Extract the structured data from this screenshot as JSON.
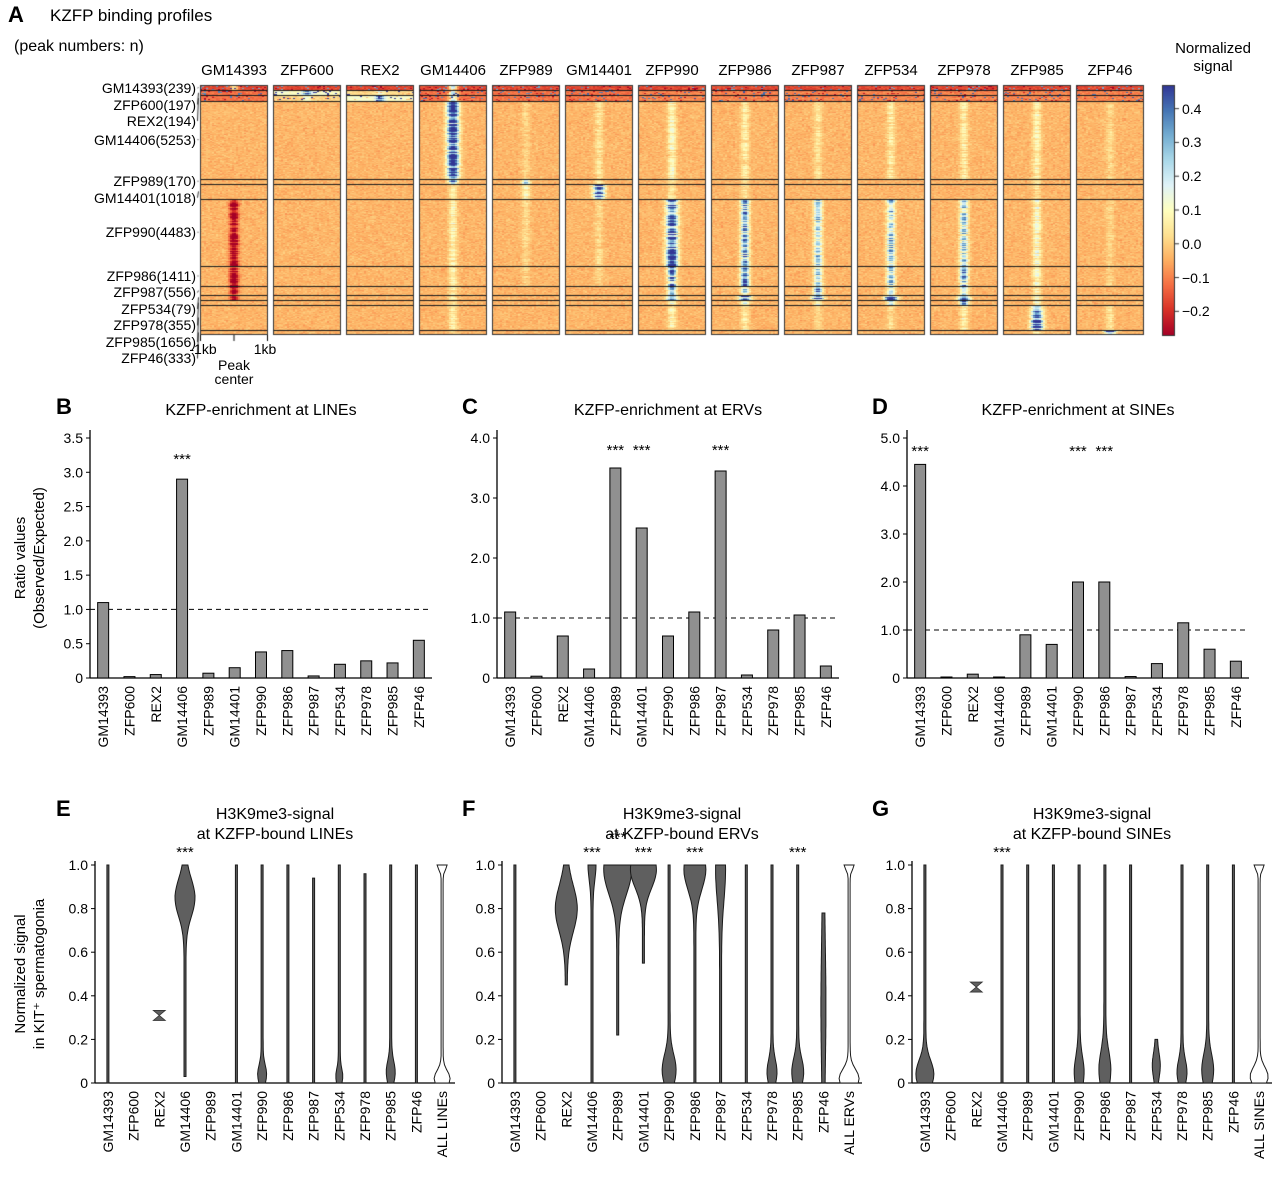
{
  "shared": {
    "ylabel_bcd_line1": "Ratio values",
    "ylabel_bcd_line2": "(Observed/Expected)",
    "ylabel_efg_line1": "Normalized signal",
    "ylabel_efg_line2": "in KIT⁺ spermatogonia"
  },
  "chart_data": [
    {
      "id": "A",
      "type": "heatmap",
      "label": "A",
      "title": "KZFP binding profiles",
      "subtitle": "(peak numbers: n)",
      "columns": [
        "GM14393",
        "ZFP600",
        "REX2",
        "GM14406",
        "ZFP989",
        "GM14401",
        "ZFP990",
        "ZFP986",
        "ZFP987",
        "ZFP534",
        "ZFP978",
        "ZFP985",
        "ZFP46"
      ],
      "rows": [
        {
          "name": "GM14393",
          "n": 239
        },
        {
          "name": "ZFP600",
          "n": 197
        },
        {
          "name": "REX2",
          "n": 194
        },
        {
          "name": "GM14406",
          "n": 5253
        },
        {
          "name": "ZFP989",
          "n": 170
        },
        {
          "name": "GM14401",
          "n": 1018
        },
        {
          "name": "ZFP990",
          "n": 4483
        },
        {
          "name": "ZFP986",
          "n": 1411
        },
        {
          "name": "ZFP987",
          "n": 556
        },
        {
          "name": "ZFP534",
          "n": 79
        },
        {
          "name": "ZFP978",
          "n": 355
        },
        {
          "name": "ZFP985",
          "n": 1656
        },
        {
          "name": "ZFP46",
          "n": 333
        }
      ],
      "xaxis": {
        "left": "-1kb",
        "right": "1kb",
        "center_line1": "Peak",
        "center_line2": "center"
      },
      "colorbar": {
        "title_line1": "Normalized",
        "title_line2": "signal",
        "ticks": [
          0.4,
          0.3,
          0.2,
          0.1,
          0.0,
          -0.1,
          -0.2
        ],
        "tick_labels": [
          "0.4",
          "0.3",
          "0.2",
          "0.1",
          "0.0",
          "−0.1",
          "−0.2"
        ],
        "vmin": -0.27,
        "vmax": 0.47,
        "palette": [
          "#a50026",
          "#d73027",
          "#f46d43",
          "#fdae61",
          "#fee090",
          "#ffffbf",
          "#e0f3f8",
          "#abd9e9",
          "#74add1",
          "#4575b4",
          "#313695"
        ]
      },
      "center_signal": [
        [
          0.2,
          0,
          0,
          0.3,
          0,
          0,
          0,
          0,
          0,
          0,
          0,
          0,
          0
        ],
        [
          0,
          0.3,
          0.15,
          0.3,
          0,
          0,
          0,
          0,
          0,
          0,
          0,
          0,
          0
        ],
        [
          0,
          0.15,
          0.3,
          0.3,
          0,
          0,
          0,
          0,
          0,
          0,
          0,
          0,
          0
        ],
        [
          0,
          0,
          0,
          0.55,
          0.05,
          0.08,
          0.13,
          0.1,
          0.08,
          0.1,
          0.1,
          0.12,
          0.06
        ],
        [
          0,
          0,
          0,
          0.45,
          0.4,
          0.1,
          0.08,
          0.08,
          0,
          0,
          0,
          0.08,
          0
        ],
        [
          0,
          0,
          0,
          0.1,
          0.12,
          0.5,
          0.1,
          0.08,
          0,
          0,
          0,
          0.08,
          0
        ],
        [
          -0.32,
          0,
          0,
          0.12,
          0.06,
          0.06,
          0.5,
          0.38,
          0.3,
          0.32,
          0.3,
          0.16,
          0.05
        ],
        [
          -0.32,
          0,
          0,
          0.12,
          0.05,
          0.05,
          0.45,
          0.45,
          0.3,
          0.32,
          0.35,
          0.16,
          0.05
        ],
        [
          -0.28,
          0,
          0,
          0.1,
          0,
          0,
          0.35,
          0.3,
          0.42,
          0.28,
          0.25,
          0.12,
          0
        ],
        [
          -0.2,
          0,
          0,
          0.1,
          0,
          0,
          0.5,
          0.5,
          0.6,
          0.65,
          0.5,
          0.2,
          0
        ],
        [
          0,
          0,
          0,
          0.08,
          0,
          0,
          0.2,
          0.2,
          0.15,
          0.22,
          0.42,
          0.15,
          0
        ],
        [
          0,
          0,
          0,
          0.1,
          0,
          0,
          0.12,
          0.1,
          0.05,
          0.08,
          0.12,
          0.55,
          0.08
        ],
        [
          0,
          0,
          0,
          0.05,
          0,
          0,
          0,
          0,
          0,
          0,
          0,
          0.1,
          0.55
        ]
      ],
      "band_signal": {
        "0": [
          -0.13,
          -0.13,
          -0.13,
          -0.13,
          -0.13,
          -0.13,
          -0.13,
          -0.13,
          -0.13,
          -0.13,
          -0.13,
          -0.13,
          -0.13
        ],
        "1": [
          -0.08,
          0.15,
          0.05,
          -0.08,
          -0.08,
          -0.08,
          -0.06,
          -0.06,
          -0.06,
          -0.06,
          -0.06,
          -0.06,
          -0.06
        ],
        "2": [
          -0.08,
          0.05,
          0.15,
          -0.08,
          -0.08,
          -0.08,
          -0.06,
          -0.06,
          -0.06,
          -0.06,
          -0.06,
          -0.06,
          -0.06
        ]
      }
    },
    {
      "id": "B",
      "type": "bar",
      "label": "B",
      "title": "KZFP-enrichment at LINEs",
      "categories": [
        "GM14393",
        "ZFP600",
        "REX2",
        "GM14406",
        "ZFP989",
        "GM14401",
        "ZFP990",
        "ZFP986",
        "ZFP987",
        "ZFP534",
        "ZFP978",
        "ZFP985",
        "ZFP46"
      ],
      "values": [
        1.1,
        0.02,
        0.05,
        2.9,
        0.07,
        0.15,
        0.38,
        0.4,
        0.03,
        0.2,
        0.25,
        0.22,
        0.55
      ],
      "ylim": [
        0,
        3.5
      ],
      "yticks": [
        "0",
        "0.5",
        "1.0",
        "1.5",
        "2.0",
        "2.5",
        "3.0",
        "3.5"
      ],
      "baseline": 1.0,
      "stars": [
        "GM14406"
      ],
      "star_y": 3.12
    },
    {
      "id": "C",
      "type": "bar",
      "label": "C",
      "title": "KZFP-enrichment at ERVs",
      "categories": [
        "GM14393",
        "ZFP600",
        "REX2",
        "GM14406",
        "ZFP989",
        "GM14401",
        "ZFP990",
        "ZFP986",
        "ZFP987",
        "ZFP534",
        "ZFP978",
        "ZFP985",
        "ZFP46"
      ],
      "values": [
        1.1,
        0.03,
        0.7,
        0.15,
        3.5,
        2.5,
        0.7,
        1.1,
        3.45,
        0.05,
        0.8,
        1.05,
        0.2
      ],
      "ylim": [
        0,
        4.0
      ],
      "yticks": [
        "0",
        "1.0",
        "2.0",
        "3.0",
        "4.0"
      ],
      "baseline": 1.0,
      "stars": [
        "ZFP989",
        "GM14401",
        "ZFP987"
      ],
      "star_y": 3.72
    },
    {
      "id": "D",
      "type": "bar",
      "label": "D",
      "title": "KZFP-enrichment at SINEs",
      "categories": [
        "GM14393",
        "ZFP600",
        "REX2",
        "GM14406",
        "ZFP989",
        "GM14401",
        "ZFP990",
        "ZFP986",
        "ZFP987",
        "ZFP534",
        "ZFP978",
        "ZFP985",
        "ZFP46"
      ],
      "values": [
        4.45,
        0.02,
        0.08,
        0.02,
        0.9,
        0.7,
        2.0,
        2.0,
        0.03,
        0.3,
        1.15,
        0.6,
        0.35
      ],
      "ylim": [
        0,
        5.0
      ],
      "yticks": [
        "0",
        "1.0",
        "2.0",
        "3.0",
        "4.0",
        "5.0"
      ],
      "baseline": 1.0,
      "stars": [
        "GM14393",
        "ZFP990",
        "ZFP986"
      ],
      "star_y": 4.62
    },
    {
      "id": "E",
      "type": "violin",
      "label": "E",
      "title_line1": "H3K9me3-signal",
      "title_line2": "at KZFP-bound LINEs",
      "ylim": [
        0,
        1
      ],
      "yticks": [
        "0",
        "0.2",
        "0.4",
        "0.6",
        "0.8",
        "1.0"
      ],
      "categories": [
        "GM14393",
        "ZFP600",
        "REX2",
        "GM14406",
        "ZFP989",
        "GM14401",
        "ZFP990",
        "ZFP986",
        "ZFP987",
        "ZFP534",
        "ZFP978",
        "ZFP985",
        "ZFP46",
        "ALL LINEs"
      ],
      "violins": [
        {
          "cat": "GM14393",
          "kind": "violin",
          "lo": 0,
          "hi": 1,
          "bulges": []
        },
        {
          "cat": "ZFP600",
          "kind": "none"
        },
        {
          "cat": "REX2",
          "kind": "bowtie",
          "y": 0.31
        },
        {
          "cat": "GM14406",
          "kind": "violin",
          "lo": 0.03,
          "hi": 1,
          "bulges": [
            {
              "y": 0.85,
              "w": 9,
              "h": 0.12
            }
          ]
        },
        {
          "cat": "ZFP989",
          "kind": "none"
        },
        {
          "cat": "GM14401",
          "kind": "violin",
          "lo": 0,
          "hi": 1,
          "bulges": []
        },
        {
          "cat": "ZFP990",
          "kind": "violin",
          "lo": 0,
          "hi": 1,
          "bulges": [
            {
              "y": 0.04,
              "w": 3.5,
              "h": 0.06
            }
          ]
        },
        {
          "cat": "ZFP986",
          "kind": "violin",
          "lo": 0,
          "hi": 1,
          "bulges": []
        },
        {
          "cat": "ZFP987",
          "kind": "violin",
          "lo": 0,
          "hi": 0.94,
          "bulges": []
        },
        {
          "cat": "ZFP534",
          "kind": "violin",
          "lo": 0,
          "hi": 1,
          "bulges": [
            {
              "y": 0.03,
              "w": 2.5,
              "h": 0.05
            }
          ]
        },
        {
          "cat": "ZFP978",
          "kind": "violin",
          "lo": 0,
          "hi": 0.96,
          "bulges": []
        },
        {
          "cat": "ZFP985",
          "kind": "violin",
          "lo": 0,
          "hi": 1,
          "bulges": [
            {
              "y": 0.05,
              "w": 3.5,
              "h": 0.07
            }
          ]
        },
        {
          "cat": "ZFP46",
          "kind": "violin",
          "lo": 0,
          "hi": 1,
          "bulges": []
        },
        {
          "cat": "ALL LINEs",
          "kind": "violin",
          "open": true,
          "lo": 0,
          "hi": 1,
          "bulges": [
            {
              "y": 0.02,
              "w": 7,
              "h": 0.05
            },
            {
              "y": 1,
              "w": 4,
              "h": 0.03
            }
          ]
        }
      ],
      "stars": [
        {
          "cat": "GM14406",
          "row": 0
        }
      ]
    },
    {
      "id": "F",
      "type": "violin",
      "label": "F",
      "title_line1": "H3K9me3-signal",
      "title_line2": "at KZFP-bound ERVs",
      "ylim": [
        0,
        1
      ],
      "yticks": [
        "0",
        "0.2",
        "0.4",
        "0.6",
        "0.8",
        "1.0"
      ],
      "categories": [
        "GM14393",
        "ZFP600",
        "REX2",
        "GM14406",
        "ZFP989",
        "GM14401",
        "ZFP990",
        "ZFP986",
        "ZFP987",
        "ZFP534",
        "ZFP978",
        "ZFP985",
        "ZFP46",
        "ALL ERVs"
      ],
      "violins": [
        {
          "cat": "GM14393",
          "kind": "violin",
          "lo": 0,
          "hi": 1,
          "bulges": []
        },
        {
          "cat": "ZFP600",
          "kind": "none"
        },
        {
          "cat": "REX2",
          "kind": "violin",
          "lo": 0.45,
          "hi": 1,
          "bulges": [
            {
              "y": 0.8,
              "w": 10,
              "h": 0.15
            }
          ]
        },
        {
          "cat": "GM14406",
          "kind": "violin",
          "lo": 0,
          "hi": 1,
          "bulges": [
            {
              "y": 1,
              "w": 3,
              "h": 0.1
            }
          ]
        },
        {
          "cat": "ZFP989",
          "kind": "violin",
          "lo": 0.22,
          "hi": 1,
          "bulges": [
            {
              "y": 0.98,
              "w": 13,
              "h": 0.16
            }
          ]
        },
        {
          "cat": "GM14401",
          "kind": "violin",
          "lo": 0.55,
          "hi": 1,
          "bulges": [
            {
              "y": 0.98,
              "w": 12,
              "h": 0.12
            }
          ]
        },
        {
          "cat": "ZFP990",
          "kind": "violin",
          "lo": 0,
          "hi": 1,
          "bulges": [
            {
              "y": 0.06,
              "w": 6,
              "h": 0.1
            }
          ]
        },
        {
          "cat": "ZFP986",
          "kind": "violin",
          "lo": 0,
          "hi": 1,
          "bulges": [
            {
              "y": 0.98,
              "w": 10,
              "h": 0.13
            }
          ]
        },
        {
          "cat": "ZFP987",
          "kind": "violin",
          "lo": 0,
          "hi": 1,
          "bulges": [
            {
              "y": 0.98,
              "w": 4,
              "h": 0.2
            }
          ]
        },
        {
          "cat": "ZFP534",
          "kind": "violin",
          "lo": 0,
          "hi": 1,
          "bulges": []
        },
        {
          "cat": "ZFP978",
          "kind": "violin",
          "lo": 0,
          "hi": 1,
          "bulges": [
            {
              "y": 0.05,
              "w": 4,
              "h": 0.08
            }
          ]
        },
        {
          "cat": "ZFP985",
          "kind": "violin",
          "lo": 0,
          "hi": 1,
          "bulges": [
            {
              "y": 0.05,
              "w": 5,
              "h": 0.09
            }
          ]
        },
        {
          "cat": "ZFP46",
          "kind": "violin",
          "lo": 0,
          "hi": 0.78,
          "bulges": [
            {
              "y": 0.35,
              "w": 1.5,
              "h": 0.4
            }
          ]
        },
        {
          "cat": "ALL ERVs",
          "kind": "violin",
          "open": true,
          "lo": 0,
          "hi": 1,
          "bulges": [
            {
              "y": 0.02,
              "w": 9,
              "h": 0.06
            },
            {
              "y": 1,
              "w": 4,
              "h": 0.03
            }
          ]
        }
      ],
      "stars": [
        {
          "cat": "GM14406",
          "row": 0
        },
        {
          "cat": "ZFP989",
          "row": 1
        },
        {
          "cat": "GM14401",
          "row": 0
        },
        {
          "cat": "ZFP986",
          "row": 0
        },
        {
          "cat": "ZFP985",
          "row": 0
        }
      ]
    },
    {
      "id": "G",
      "type": "violin",
      "label": "G",
      "title_line1": "H3K9me3-signal",
      "title_line2": "at KZFP-bound SINEs",
      "ylim": [
        0,
        1
      ],
      "yticks": [
        "0",
        "0.2",
        "0.4",
        "0.6",
        "0.8",
        "1.0"
      ],
      "categories": [
        "GM14393",
        "ZFP600",
        "REX2",
        "GM14406",
        "ZFP989",
        "GM14401",
        "ZFP990",
        "ZFP986",
        "ZFP987",
        "ZFP534",
        "ZFP978",
        "ZFP985",
        "ZFP46",
        "ALL SINEs"
      ],
      "violins": [
        {
          "cat": "GM14393",
          "kind": "violin",
          "lo": 0,
          "hi": 1,
          "bulges": [
            {
              "y": 0.04,
              "w": 8,
              "h": 0.09
            }
          ]
        },
        {
          "cat": "ZFP600",
          "kind": "none"
        },
        {
          "cat": "REX2",
          "kind": "bowtie",
          "y": 0.44
        },
        {
          "cat": "GM14406",
          "kind": "violin",
          "lo": 0,
          "hi": 1,
          "bulges": []
        },
        {
          "cat": "ZFP989",
          "kind": "violin",
          "lo": 0,
          "hi": 1,
          "bulges": []
        },
        {
          "cat": "GM14401",
          "kind": "violin",
          "lo": 0,
          "hi": 1,
          "bulges": []
        },
        {
          "cat": "ZFP990",
          "kind": "violin",
          "lo": 0,
          "hi": 1,
          "bulges": [
            {
              "y": 0.05,
              "w": 4,
              "h": 0.1
            }
          ]
        },
        {
          "cat": "ZFP986",
          "kind": "violin",
          "lo": 0,
          "hi": 1,
          "bulges": [
            {
              "y": 0.06,
              "w": 5,
              "h": 0.12
            }
          ]
        },
        {
          "cat": "ZFP987",
          "kind": "violin",
          "lo": 0,
          "hi": 1,
          "bulges": []
        },
        {
          "cat": "ZFP534",
          "kind": "violin",
          "lo": 0,
          "hi": 0.2,
          "bulges": [
            {
              "y": 0.08,
              "w": 3,
              "h": 0.08
            }
          ]
        },
        {
          "cat": "ZFP978",
          "kind": "violin",
          "lo": 0,
          "hi": 1,
          "bulges": [
            {
              "y": 0.05,
              "w": 4,
              "h": 0.08
            }
          ]
        },
        {
          "cat": "ZFP985",
          "kind": "violin",
          "lo": 0,
          "hi": 1,
          "bulges": [
            {
              "y": 0.06,
              "w": 5,
              "h": 0.1
            }
          ]
        },
        {
          "cat": "ZFP46",
          "kind": "violin",
          "lo": 0,
          "hi": 1,
          "bulges": []
        },
        {
          "cat": "ALL SINEs",
          "kind": "violin",
          "open": true,
          "lo": 0,
          "hi": 1,
          "bulges": [
            {
              "y": 0.03,
              "w": 8,
              "h": 0.06
            },
            {
              "y": 1,
              "w": 4,
              "h": 0.03
            }
          ]
        }
      ],
      "stars": [
        {
          "cat": "GM14406",
          "row": 0
        }
      ]
    }
  ]
}
